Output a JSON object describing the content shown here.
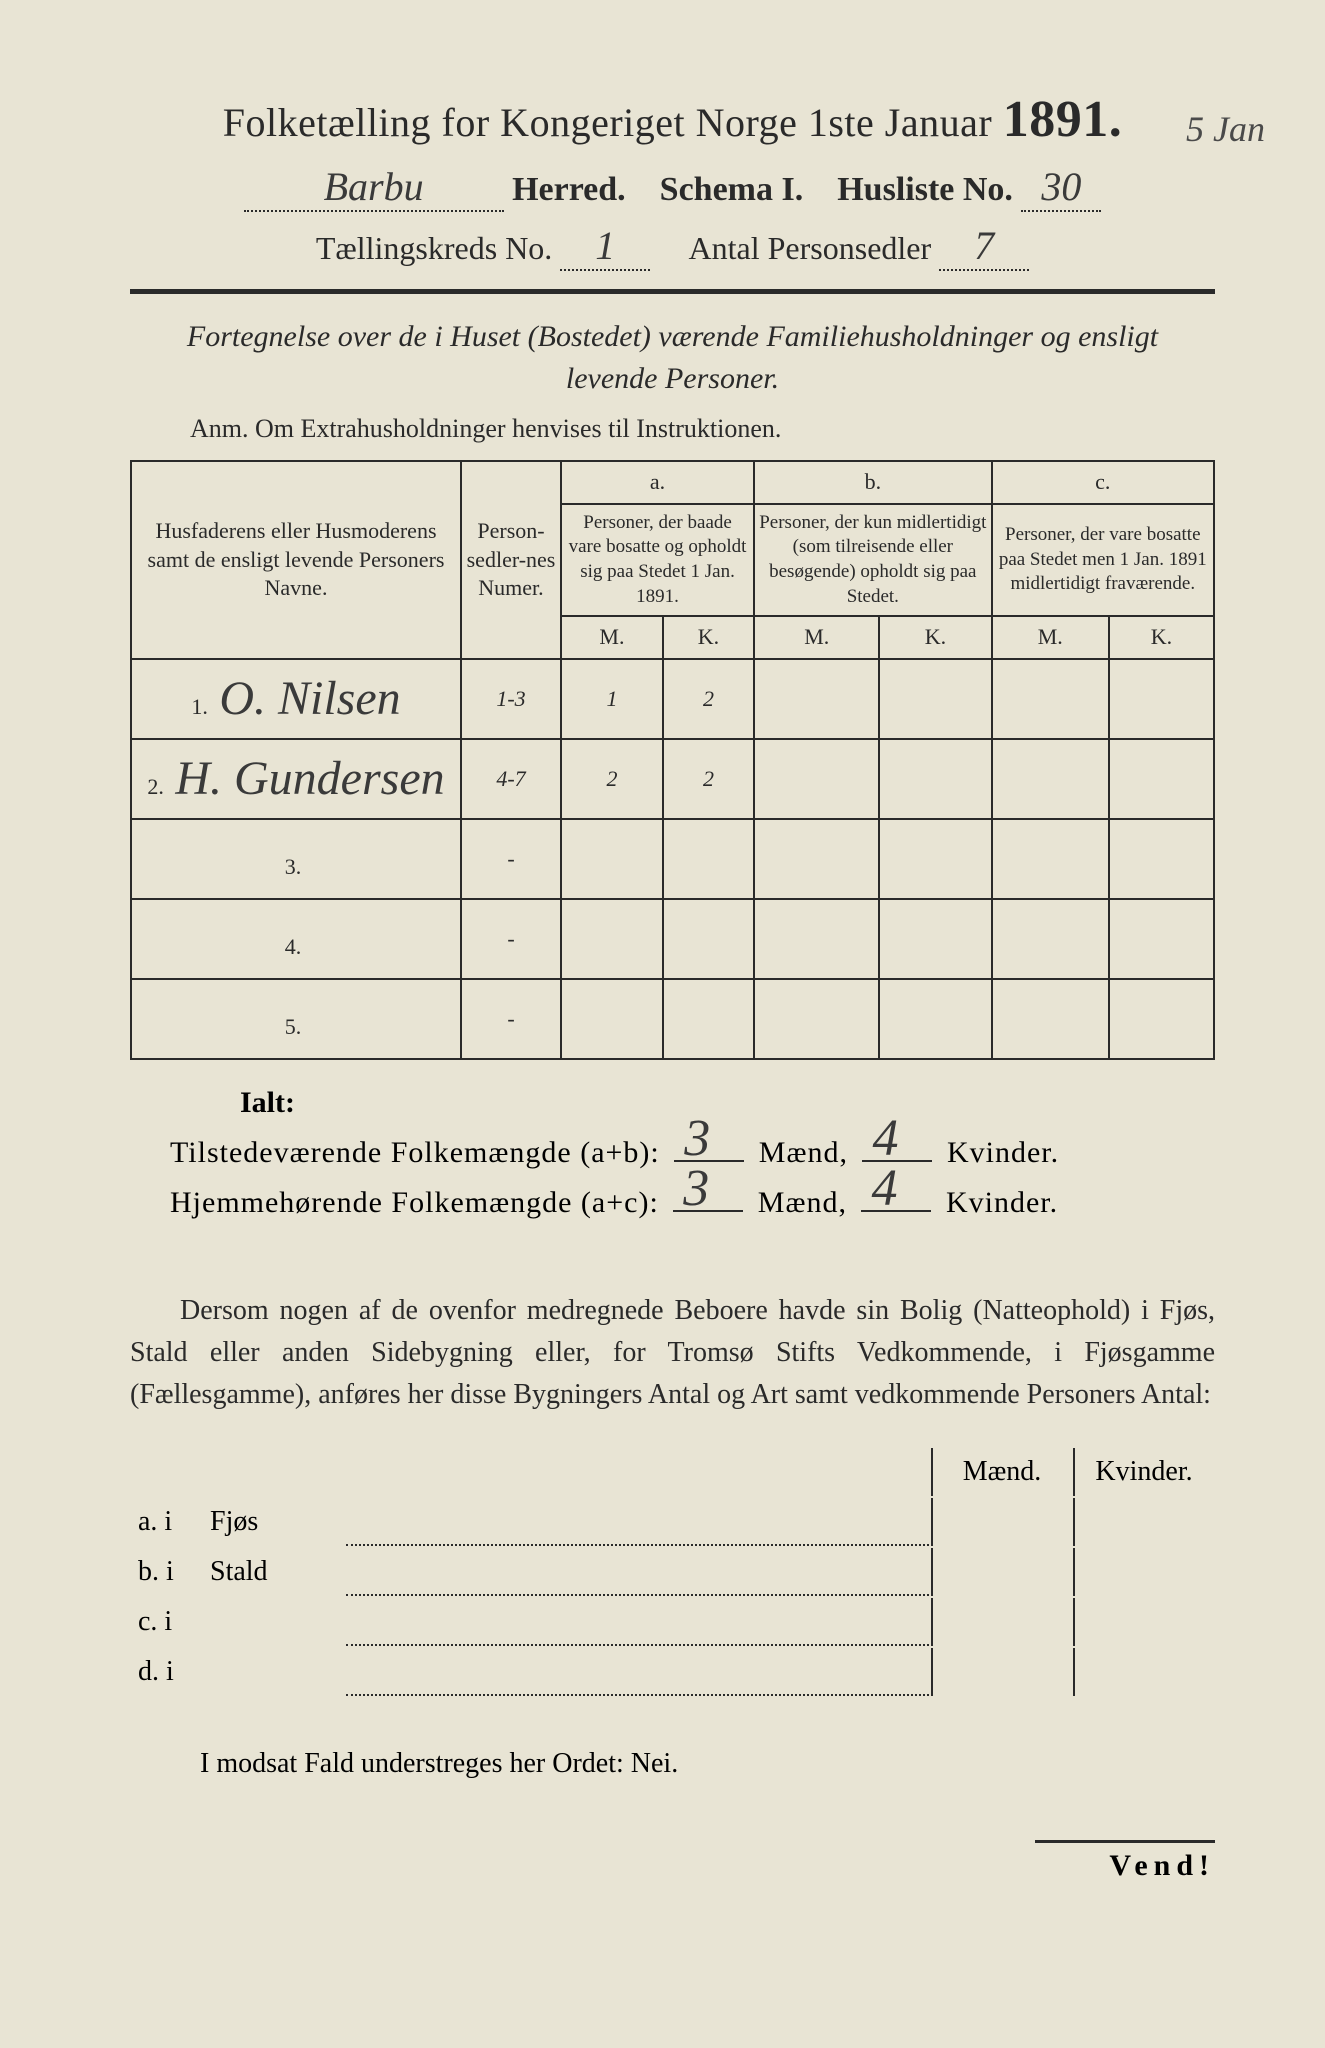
{
  "header": {
    "title_prefix": "Folketælling for Kongeriget Norge 1ste Januar",
    "year": "1891.",
    "herred_label": "Herred.",
    "schema_label": "Schema I.",
    "husliste_label": "Husliste No.",
    "herred_value": "Barbu",
    "husliste_value": "30",
    "margin_date": "5 Jan",
    "kreds_label": "Tællingskreds No.",
    "kreds_value": "1",
    "antal_label": "Antal Personsedler",
    "antal_value": "7"
  },
  "subtitle": {
    "line1": "Fortegnelse over de i Huset (Bostedet) værende Familiehusholdninger og ensligt",
    "line2": "levende Personer."
  },
  "anm": "Anm.  Om Extrahusholdninger henvises til Instruktionen.",
  "table": {
    "col_names_header": "Husfaderens eller Husmoderens samt de ensligt levende Personers Navne.",
    "col_num_header": "Person-sedler-nes Numer.",
    "col_a_label": "a.",
    "col_a_header": "Personer, der baade vare bosatte og opholdt sig paa Stedet 1 Jan. 1891.",
    "col_b_label": "b.",
    "col_b_header": "Personer, der kun midlertidigt (som tilreisende eller besøgende) opholdt sig paa Stedet.",
    "col_c_label": "c.",
    "col_c_header": "Personer, der vare bosatte paa Stedet men 1 Jan. 1891 midlertidigt fraværende.",
    "mk_m": "M.",
    "mk_k": "K.",
    "rows": [
      {
        "n": "1.",
        "name": "O. Nilsen",
        "num": "1-3",
        "am": "1",
        "ak": "2",
        "bm": "",
        "bk": "",
        "cm": "",
        "ck": ""
      },
      {
        "n": "2.",
        "name": "H. Gundersen",
        "num": "4-7",
        "am": "2",
        "ak": "2",
        "bm": "",
        "bk": "",
        "cm": "",
        "ck": ""
      },
      {
        "n": "3.",
        "name": "",
        "num": "-",
        "am": "",
        "ak": "",
        "bm": "",
        "bk": "",
        "cm": "",
        "ck": ""
      },
      {
        "n": "4.",
        "name": "",
        "num": "-",
        "am": "",
        "ak": "",
        "bm": "",
        "bk": "",
        "cm": "",
        "ck": ""
      },
      {
        "n": "5.",
        "name": "",
        "num": "-",
        "am": "",
        "ak": "",
        "bm": "",
        "bk": "",
        "cm": "",
        "ck": ""
      }
    ]
  },
  "totals": {
    "ialt": "Ialt:",
    "line1_label": "Tilstedeværende Folkemængde (a+b):",
    "line2_label": "Hjemmehørende Folkemængde (a+c):",
    "maend": "Mænd,",
    "kvinder": "Kvinder.",
    "ab_m": "3",
    "ab_k": "4",
    "ac_m": "3",
    "ac_k": "4"
  },
  "paragraph": "Dersom nogen af de ovenfor medregnede Beboere havde sin Bolig (Natteophold) i Fjøs, Stald eller anden Sidebygning eller, for Tromsø Stifts Vedkommende, i Fjøsgamme (Fællesgamme), anføres her disse Bygningers Antal og Art samt vedkommende Personers Antal:",
  "buildings": {
    "head_m": "Mænd.",
    "head_k": "Kvinder.",
    "rows": [
      {
        "label": "a.  i",
        "name": "Fjøs"
      },
      {
        "label": "b.  i",
        "name": "Stald"
      },
      {
        "label": "c.  i",
        "name": ""
      },
      {
        "label": "d.  i",
        "name": ""
      }
    ]
  },
  "nei_line": "I modsat Fald understreges her Ordet: Nei.",
  "vend": "Vend!",
  "colors": {
    "paper": "#e8e4d4",
    "ink": "#2a2a2a",
    "handwriting": "#3a3a3a",
    "background": "#4a4a4a"
  }
}
